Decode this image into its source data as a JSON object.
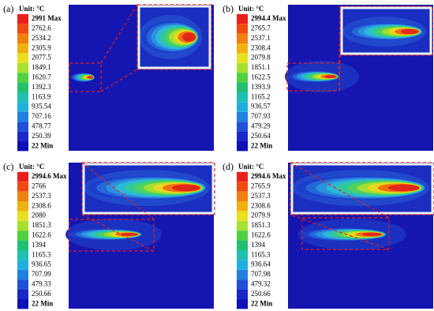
{
  "panels": [
    {
      "label": "(a)",
      "unit": "Unit: °C",
      "legend": [
        "2991 Max",
        "2762.6",
        "2534.2",
        "2305.9",
        "2077.5",
        "1849.1",
        "1620.7",
        "1392.3",
        "1163.9",
        "935.54",
        "707.16",
        "478.77",
        "250.39",
        "22 Min"
      ]
    },
    {
      "label": "(b)",
      "unit": "Unit: °C",
      "legend": [
        "2994.4 Max",
        "2765.7",
        "2537.1",
        "2308.4",
        "2079.8",
        "1851.1",
        "1622.5",
        "1393.9",
        "1165.2",
        "936.57",
        "707.93",
        "479.29",
        "250.64",
        "22 Min"
      ]
    },
    {
      "label": "(c)",
      "unit": "Unit: °C",
      "legend": [
        "2994.6 Max",
        "2766",
        "2537.3",
        "2308.6",
        "2080",
        "1851.3",
        "1622.6",
        "1394",
        "1165.3",
        "936.65",
        "707.99",
        "479.33",
        "250.66",
        "22 Min"
      ]
    },
    {
      "label": "(d)",
      "unit": "Unit: °C",
      "legend": [
        "2994.6 Max",
        "2765.9",
        "2537.3",
        "2308.6",
        "2079.9",
        "1851.3",
        "1622.6",
        "1394",
        "1165.3",
        "936.64",
        "707.98",
        "479.32",
        "250.66",
        "22 Min"
      ]
    }
  ]
}
